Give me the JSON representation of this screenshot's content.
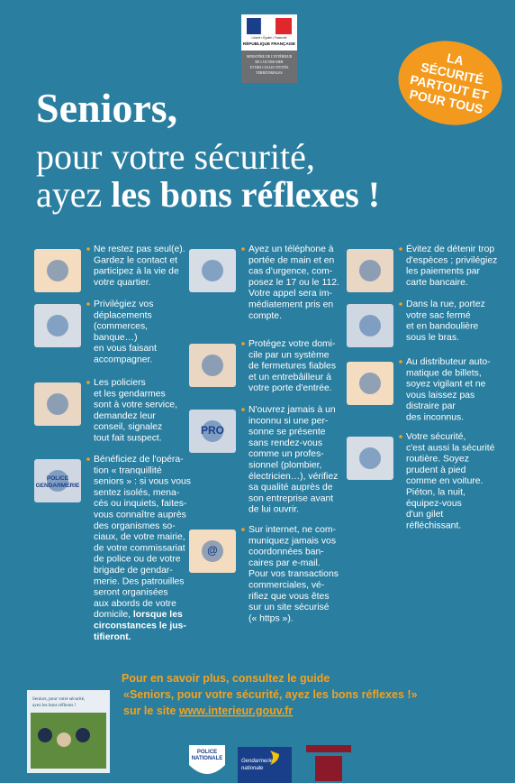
{
  "header": {
    "motto": "Liberté • Égalité • Fraternité",
    "republic": "RÉPUBLIQUE FRANÇAISE",
    "ministry": [
      "MINISTÈRE DE L'INTÉRIEUR",
      "DE L'OUTRE-MER",
      "ET DES COLLECTIVITÉS",
      "TERRITORIALES"
    ]
  },
  "badge": [
    "LA",
    "SÉCURITÉ",
    "PARTOUT ET",
    "POUR TOUS"
  ],
  "title": {
    "line1": "Seniors,",
    "line2": "pour votre sécurité,",
    "line3_start": "ayez",
    "line3_bold": "les bons réflexes !"
  },
  "columns": [
    [
      {
        "lines": [
          "Ne restez pas seul(e).",
          "Gardez le contact et",
          "participez à la vie de",
          "votre quartier."
        ]
      },
      {
        "lines": [
          "Privilégiez vos",
          "déplacements",
          "(commerces,",
          "banque…)",
          "en vous faisant",
          "accompagner."
        ]
      },
      {
        "lines": [
          "Les policiers",
          "et les gendarmes",
          "sont à votre service,",
          "demandez leur",
          "conseil, signalez",
          "tout fait suspect."
        ]
      },
      {
        "icon_label": [
          "POLICE",
          "GENDARMERIE"
        ],
        "lines": [
          "Bénéficiez de l'opéra-",
          "tion « tranquillité",
          "seniors » : si vous vous",
          "sentez isolés, mena-",
          "cés ou inquiets, faites-",
          "vous connaître auprès",
          "des organismes so-",
          "ciaux, de votre mairie,",
          "de votre commissariat",
          "de police ou de votre",
          "brigade de gendar-",
          "merie. Des patrouilles",
          "seront organisées",
          "aux abords de votre",
          [
            "domicile, ",
            {
              "text": "lorsque les",
              "bold": true
            }
          ],
          [
            {
              "text": "circonstances le jus-",
              "bold": true
            }
          ],
          [
            {
              "text": "tifieront.",
              "bold": true
            }
          ]
        ]
      }
    ],
    [
      {
        "lines": [
          "Ayez un téléphone à",
          "portée de main et en",
          "cas d'urgence, com-",
          "posez le 17 ou le 112.",
          "Votre appel sera im-",
          "médiatement pris en",
          "compte."
        ]
      },
      {
        "lines": [
          "Protégez votre domi-",
          "cile par un système",
          "de fermetures fiables",
          "et un entrebâilleur à",
          "votre porte d'entrée."
        ]
      },
      {
        "icon_label": [
          "PRO"
        ],
        "lines": [
          "N'ouvrez jamais à un",
          "inconnu si une per-",
          "sonne se présente",
          "sans rendez-vous",
          "comme un profes-",
          "sionnel (plombier,",
          "électricien…), vérifiez",
          "sa qualité auprès de",
          "son entreprise avant",
          "de lui ouvrir."
        ]
      },
      {
        "icon_label": [
          "@"
        ],
        "lines": [
          "Sur internet, ne com-",
          "muniquez jamais vos",
          "coordonnées ban-",
          "caires par e-mail.",
          "Pour vos transactions",
          "commerciales, vé-",
          "rifiez que vous êtes",
          "sur un site sécurisé",
          "(« https »)."
        ]
      }
    ],
    [
      {
        "lines": [
          "Évitez de détenir trop",
          "d'espèces ; privilégiez",
          "les paiements par",
          "carte bancaire."
        ]
      },
      {
        "lines": [
          "Dans la rue, portez",
          "votre sac fermé",
          "et en bandoulière",
          "sous le bras."
        ]
      },
      {
        "lines": [
          "Au distributeur auto-",
          "matique de billets,",
          "soyez vigilant et ne",
          "vous laissez pas",
          "distraire par",
          "des inconnus."
        ]
      },
      {
        "lines": [
          "Votre sécurité,",
          "c'est aussi la sécurité",
          "routière. Soyez",
          "prudent à pied",
          "comme en voiture.",
          "Piéton, la nuit,",
          "équipez-vous",
          "d'un gilet",
          "réfléchissant."
        ]
      }
    ]
  ],
  "footer": {
    "line1": "Pour en savoir plus, consultez le guide",
    "line2": "«Seniors, pour votre sécurité, ayez les bons réflexes !»",
    "line3_start": "sur le site",
    "link": "www.interieur.gouv.fr",
    "booklet_title": [
      "Seniors, pour votre sécurité,",
      "ayez les bons réflexes !"
    ]
  },
  "logos": {
    "police": [
      "POLICE",
      "NATIONALE"
    ],
    "gendarmerie": [
      "Gendarmerie",
      "nationale"
    ]
  }
}
